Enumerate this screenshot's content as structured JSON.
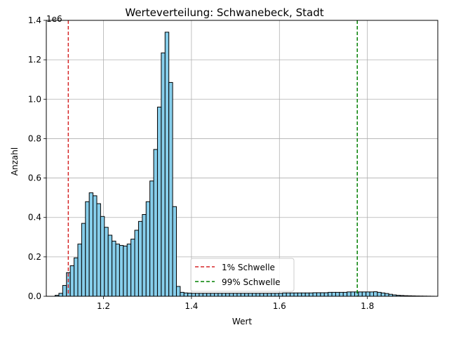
{
  "chart_data": {
    "type": "bar",
    "title": "Werteverteilung: Schwanebeck, Stadt",
    "xlabel": "Wert",
    "ylabel": "Anzahl",
    "y_offset_label": "1e6",
    "xlim": [
      1.07,
      1.96
    ],
    "ylim": [
      0,
      1400000.0
    ],
    "x_ticks": [
      1.2,
      1.4,
      1.6,
      1.8
    ],
    "x_tick_labels": [
      "1.2",
      "1.4",
      "1.6",
      "1.8"
    ],
    "y_ticks": [
      0,
      0.2,
      0.4,
      0.6,
      0.8,
      1.0,
      1.2,
      1.4
    ],
    "y_tick_labels": [
      "0.0",
      "0.2",
      "0.4",
      "0.6",
      "0.8",
      "1.0",
      "1.2",
      "1.4"
    ],
    "grid": true,
    "legend_position": "lower-center",
    "bar_color": "#87ceeb",
    "bar_edge_color": "#000000",
    "bin_start": 1.09,
    "bin_width": 0.00862,
    "values": [
      5000,
      15000,
      55000,
      120000,
      155000,
      195000,
      265000,
      370000,
      480000,
      525000,
      510000,
      470000,
      405000,
      350000,
      310000,
      280000,
      265000,
      258000,
      255000,
      265000,
      290000,
      335000,
      380000,
      415000,
      480000,
      585000,
      745000,
      960000,
      1235000,
      1340000,
      1085000,
      455000,
      50000,
      20000,
      17000,
      16000,
      15000,
      15000,
      15000,
      15000,
      15000,
      15000,
      15000,
      15000,
      15000,
      15000,
      15000,
      15000,
      15000,
      15000,
      15000,
      15000,
      15000,
      15000,
      15000,
      15000,
      15000,
      15000,
      15000,
      15000,
      17000,
      17000,
      17000,
      17000,
      17000,
      17000,
      17000,
      17000,
      18000,
      18000,
      18000,
      18000,
      20000,
      20000,
      20000,
      20000,
      20000,
      22000,
      22000,
      22000,
      22000,
      22000,
      22000,
      22000,
      23000,
      20000,
      17000,
      14000,
      10000,
      7000,
      5000,
      4000,
      3000,
      2500,
      2000,
      1500,
      1200,
      900,
      600,
      300
    ],
    "thresholds": [
      {
        "name": "1% Schwelle",
        "x": 1.12,
        "color": "#d62728"
      },
      {
        "name": "99% Schwelle",
        "x": 1.777,
        "color": "#008000"
      }
    ]
  }
}
